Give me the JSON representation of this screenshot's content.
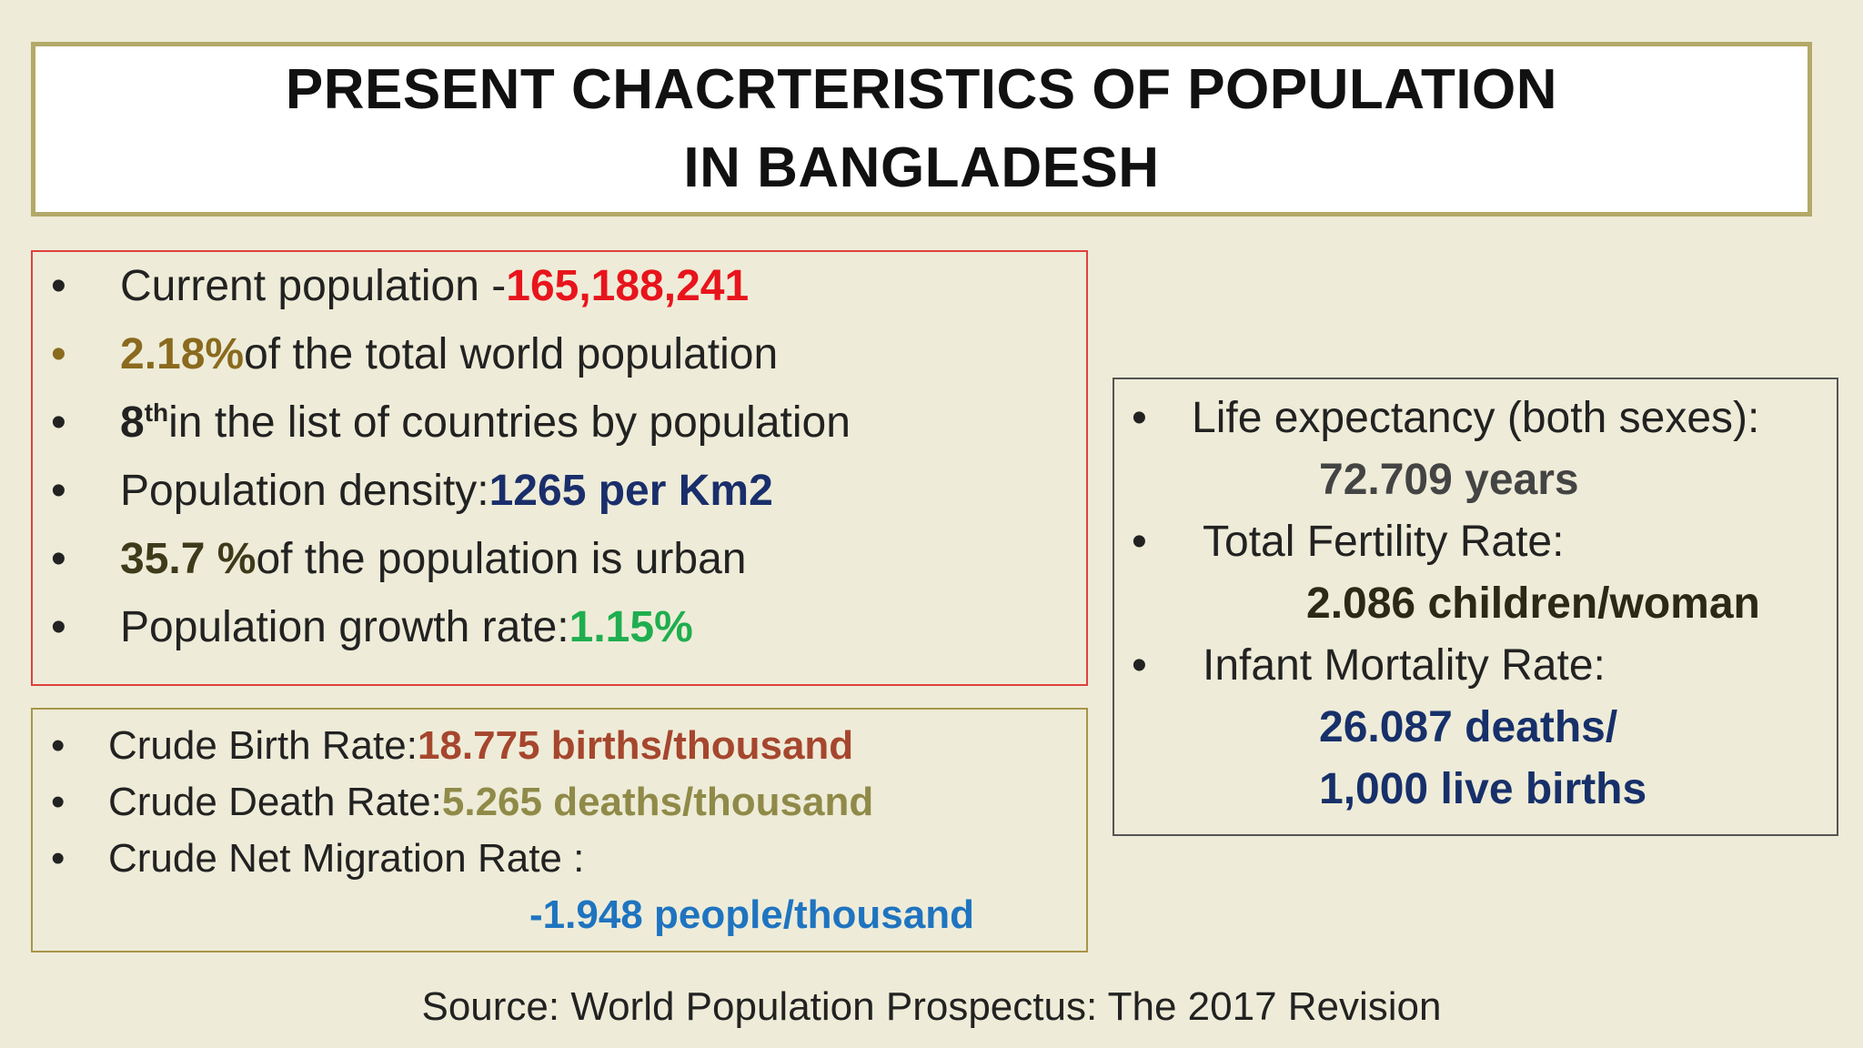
{
  "title": {
    "line1": "PRESENT CHACRTERISTICS OF POPULATION",
    "line2": "IN BANGLADESH"
  },
  "left_top": {
    "bullet": "•",
    "items": [
      {
        "text": "Current population - ",
        "value": "165,188,241"
      },
      {
        "value": "2.18%",
        "text": " of the total world population"
      },
      {
        "value": "8",
        "sup": "th",
        "text": " in the list of countries  by population"
      },
      {
        "text": "Population density: ",
        "value": "1265 per Km2"
      },
      {
        "value": "35.7 %",
        "text": " of the population is urban"
      },
      {
        "text": "Population growth rate: ",
        "value": "1.15%"
      }
    ]
  },
  "left_bottom": {
    "items": [
      {
        "text": "Crude Birth Rate: ",
        "value": "18.775 births/thousand"
      },
      {
        "text": "Crude Death Rate: ",
        "value": "5.265 deaths/thousand"
      },
      {
        "text": "Crude Net Migration Rate :",
        "value": "-1.948 people/thousand"
      }
    ]
  },
  "right": {
    "items": [
      {
        "text": "Life expectancy (both sexes):",
        "value": "72.709 years"
      },
      {
        "text": "Total Fertility Rate:",
        "value": "2.086 children/woman"
      },
      {
        "text": "Infant Mortality Rate:",
        "value_line1": "26.087 deaths/",
        "value_line2": "1,000 live births"
      }
    ]
  },
  "source": "Source: World Population Prospectus: The 2017 Revision",
  "colors": {
    "background": "#eeecd8",
    "title_border": "#b3a968",
    "red_border": "#e04040",
    "olive_border": "#a8954a",
    "population_value": "#e8141c",
    "world_share": "#8a6a1e",
    "density": "#1a2e6b",
    "growth": "#1fae4f",
    "birth": "#a6462e",
    "death": "#8f8a48",
    "migration": "#1f74c0"
  }
}
